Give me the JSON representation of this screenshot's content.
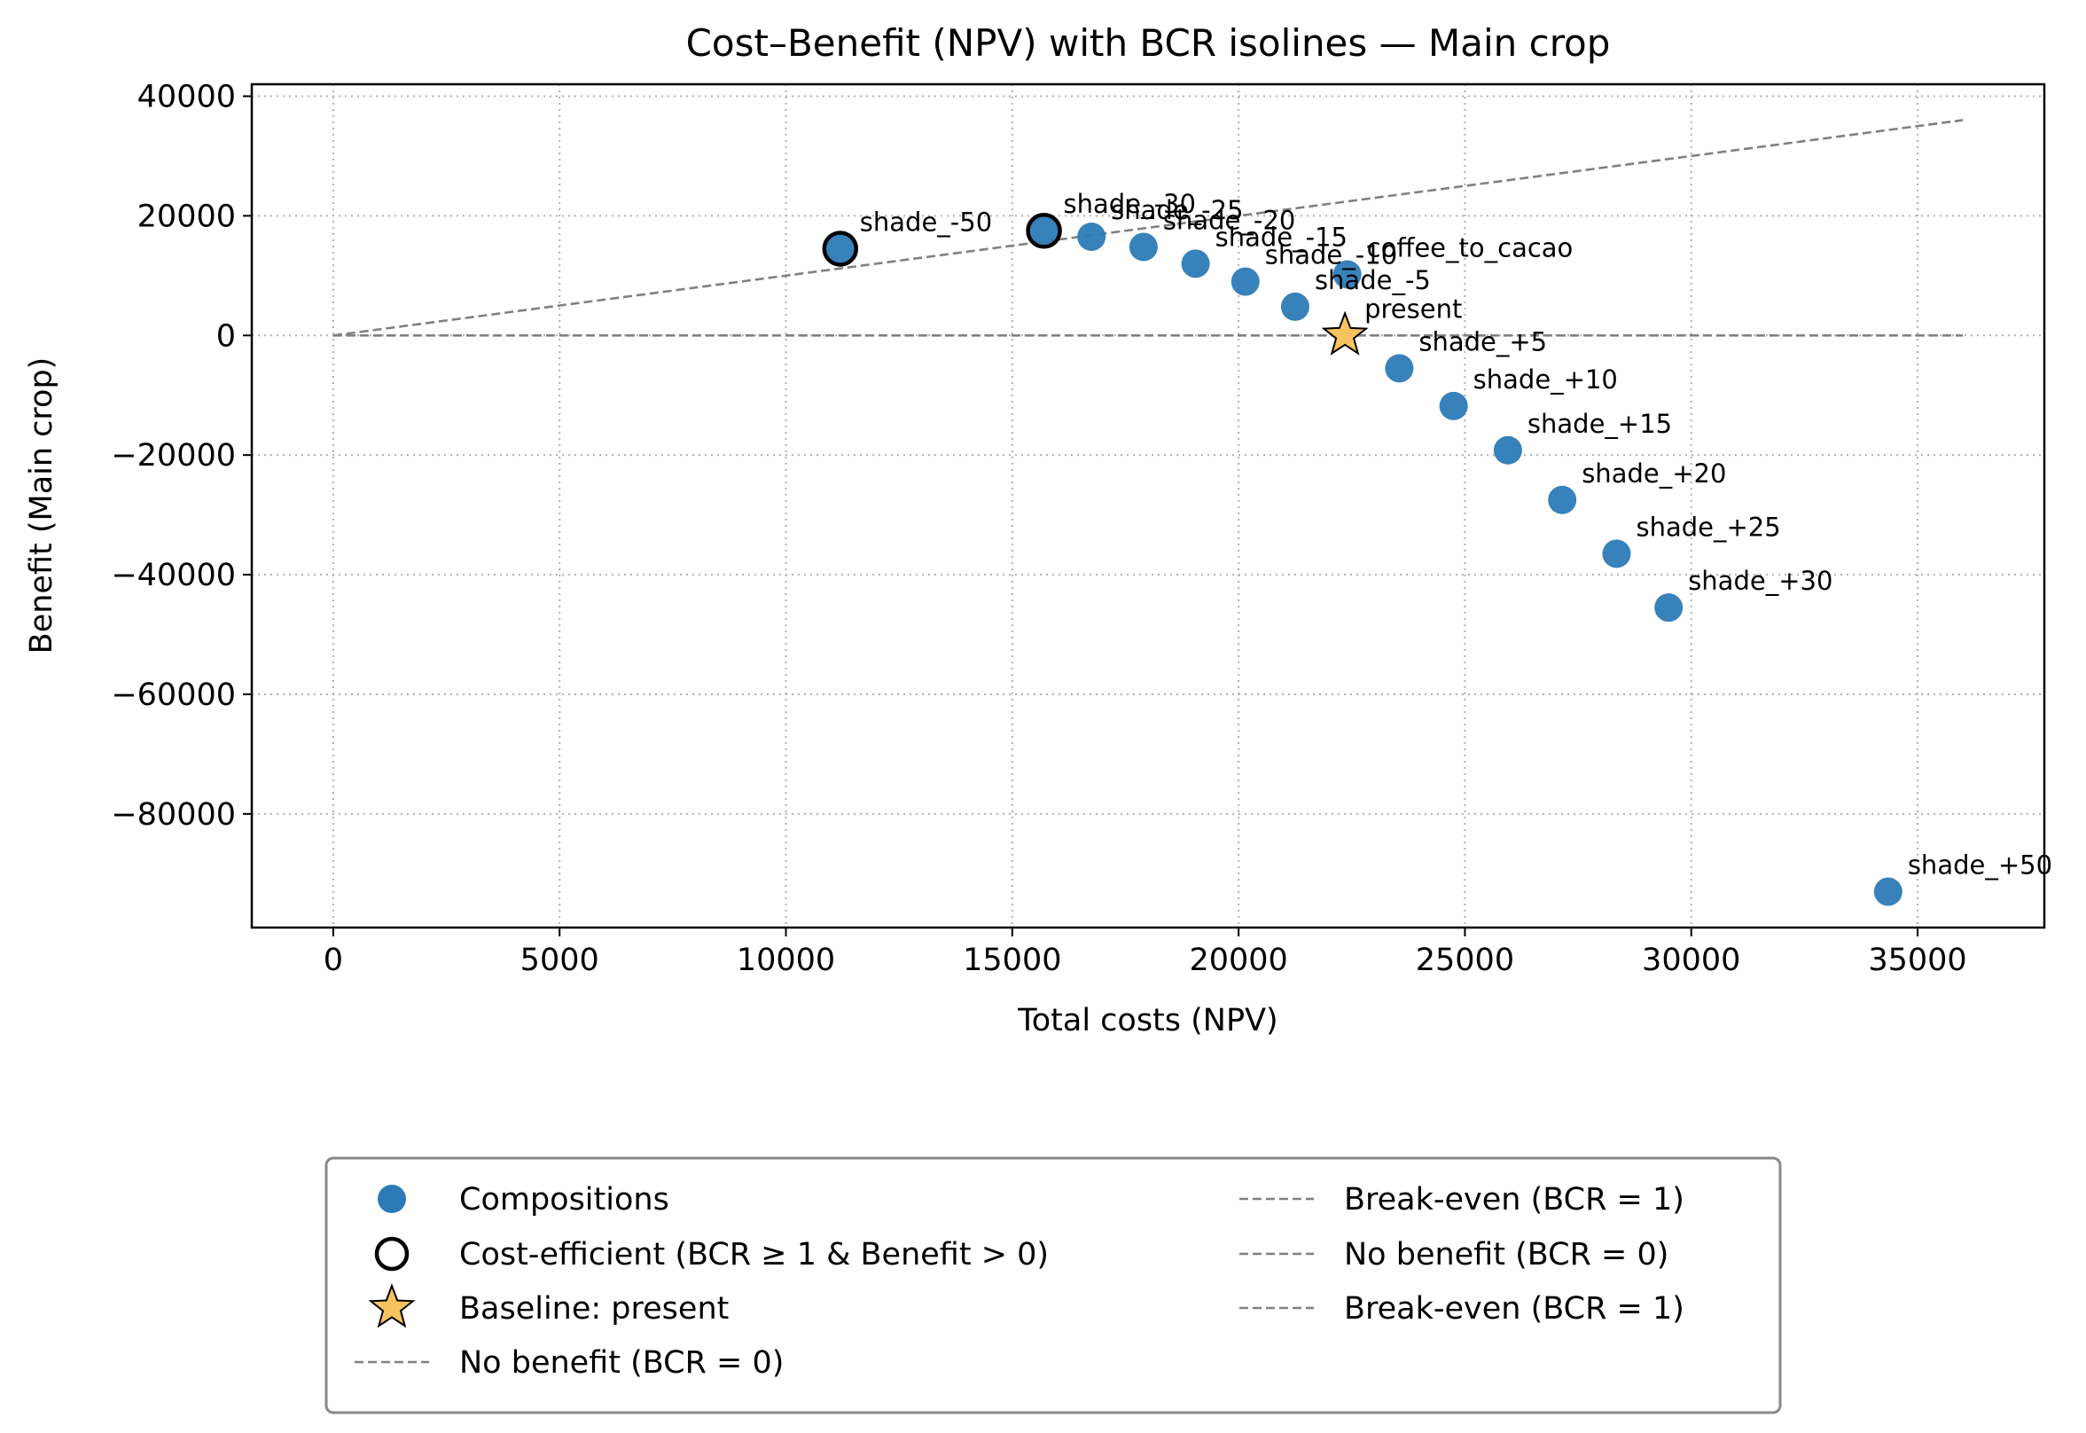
{
  "chart_data": {
    "type": "scatter",
    "title": "Cost–Benefit (NPV) with BCR isolines — Main crop",
    "xlabel": "Total costs (NPV)",
    "ylabel": "Benefit (Main crop)",
    "xlim": [
      -1800,
      37800
    ],
    "ylim": [
      -99000,
      42000
    ],
    "xticks": [
      0,
      5000,
      10000,
      15000,
      20000,
      25000,
      30000,
      35000
    ],
    "xtick_labels": [
      "0",
      "5000",
      "10000",
      "15000",
      "20000",
      "25000",
      "30000",
      "35000"
    ],
    "yticks": [
      40000,
      20000,
      0,
      -20000,
      -40000,
      -60000,
      -80000
    ],
    "ytick_labels": [
      "40000",
      "20000",
      "0",
      "−20000",
      "−40000",
      "−60000",
      "−80000"
    ],
    "grid": true,
    "grid_style": "dotted",
    "legend_position": "below-plot",
    "colors": {
      "points": "#2c7bb6",
      "baseline_fill": "#f6c35e",
      "isoline": "#808080",
      "efficient_ring": "#000000"
    },
    "series": [
      {
        "name": "Compositions",
        "points": [
          {
            "label": "shade_-50",
            "x": 11200,
            "y": 14500
          },
          {
            "label": "shade_-30",
            "x": 15700,
            "y": 17500
          },
          {
            "label": "shade_-25",
            "x": 16750,
            "y": 16500
          },
          {
            "label": "shade_-20",
            "x": 17900,
            "y": 14800
          },
          {
            "label": "shade_-15",
            "x": 19050,
            "y": 12000
          },
          {
            "label": "shade_-10",
            "x": 20150,
            "y": 9000
          },
          {
            "label": "shade_-5",
            "x": 21250,
            "y": 4800
          },
          {
            "label": "coffee_to_cacao",
            "x": 22400,
            "y": 10200
          },
          {
            "label": "shade_+5",
            "x": 23550,
            "y": -5500
          },
          {
            "label": "shade_+10",
            "x": 24750,
            "y": -11800
          },
          {
            "label": "shade_+15",
            "x": 25950,
            "y": -19200
          },
          {
            "label": "shade_+20",
            "x": 27150,
            "y": -27500
          },
          {
            "label": "shade_+25",
            "x": 28350,
            "y": -36500
          },
          {
            "label": "shade_+30",
            "x": 29500,
            "y": -45500
          },
          {
            "label": "shade_+50",
            "x": 34350,
            "y": -93000
          }
        ]
      },
      {
        "name": "Cost-efficient (BCR ≥ 1 & Benefit > 0)",
        "points": [
          {
            "x": 11200,
            "y": 14500
          },
          {
            "x": 15700,
            "y": 17500
          }
        ]
      },
      {
        "name": "Baseline: present",
        "points": [
          {
            "label": "present",
            "x": 22350,
            "y": 0
          }
        ]
      }
    ],
    "isolines": [
      {
        "name": "Break-even (BCR = 1)",
        "slope": 1,
        "x_range": [
          0,
          36000
        ]
      },
      {
        "name": "No benefit (BCR = 0)",
        "slope": 0,
        "x_range": [
          0,
          36000
        ]
      }
    ],
    "legend": {
      "left": [
        {
          "label": "Compositions",
          "marker": "circle"
        },
        {
          "label": "Cost-efficient (BCR ≥ 1 & Benefit > 0)",
          "marker": "ring"
        },
        {
          "label": "Baseline: present",
          "marker": "star"
        },
        {
          "label": "No benefit (BCR = 0)",
          "marker": "dash"
        }
      ],
      "right": [
        {
          "label": "Break-even (BCR = 1)",
          "marker": "dash"
        },
        {
          "label": "No benefit (BCR = 0)",
          "marker": "dash"
        },
        {
          "label": "Break-even (BCR = 1)",
          "marker": "dash"
        }
      ]
    }
  }
}
